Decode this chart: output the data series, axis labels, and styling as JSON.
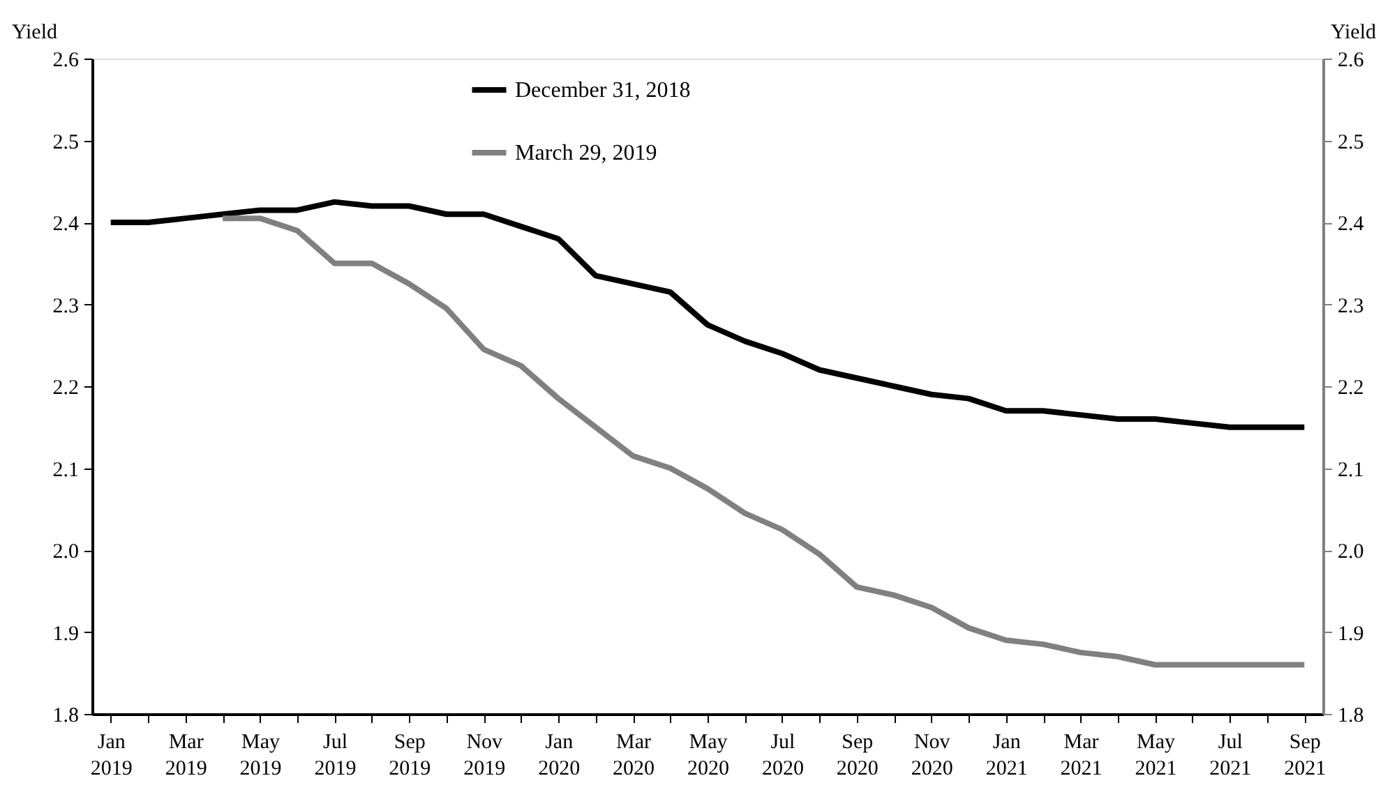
{
  "chart_data": {
    "type": "line",
    "ylabel": "Yield",
    "y2label": "Yield",
    "categories": [
      "Jan 2019",
      null,
      "Mar 2019",
      null,
      "May 2019",
      null,
      "Jul 2019",
      null,
      "Sep 2019",
      null,
      "Nov 2019",
      null,
      "Jan 2020",
      null,
      "Mar 2020",
      null,
      "May 2020",
      null,
      "Jul 2020",
      null,
      "Sep 2020",
      null,
      "Nov 2020",
      null,
      "Jan 2021",
      null,
      "Mar 2021",
      null,
      "May 2021",
      null,
      "Jul 2021",
      null,
      "Sep 2021"
    ],
    "series": [
      {
        "name": "December 31, 2018",
        "color": "#000000",
        "values": [
          2.4,
          2.4,
          2.405,
          2.41,
          2.415,
          2.415,
          2.425,
          2.42,
          2.42,
          2.41,
          2.41,
          2.395,
          2.38,
          2.335,
          2.325,
          2.315,
          2.275,
          2.255,
          2.24,
          2.22,
          2.21,
          2.2,
          2.19,
          2.185,
          2.17,
          2.17,
          2.165,
          2.16,
          2.16,
          2.155,
          2.15,
          2.15,
          2.15
        ]
      },
      {
        "name": "March 29, 2019",
        "color": "#808080",
        "values": [
          null,
          null,
          null,
          2.405,
          2.405,
          2.39,
          2.35,
          2.35,
          2.325,
          2.295,
          2.245,
          2.225,
          2.185,
          2.15,
          2.115,
          2.1,
          2.075,
          2.045,
          2.025,
          1.995,
          1.955,
          1.945,
          1.93,
          1.905,
          1.89,
          1.885,
          1.875,
          1.87,
          1.86,
          1.86,
          1.86,
          1.86,
          1.86
        ]
      }
    ],
    "ylim": [
      1.8,
      2.6
    ],
    "yticks": [
      1.8,
      1.9,
      {
        "value": 2.0,
        "label": "2.0"
      },
      2.1,
      2.2,
      2.3,
      2.4,
      2.5,
      2.6
    ],
    "y2lim": [
      1.8,
      2.6
    ],
    "y2ticks": [
      1.8,
      1.9,
      {
        "value": 2.0,
        "label": "2.0"
      },
      2.1,
      2.2,
      2.3,
      2.4,
      2.5,
      2.6
    ],
    "grid": false,
    "legend": "top left",
    "marker": "none",
    "line_style": "solid"
  }
}
